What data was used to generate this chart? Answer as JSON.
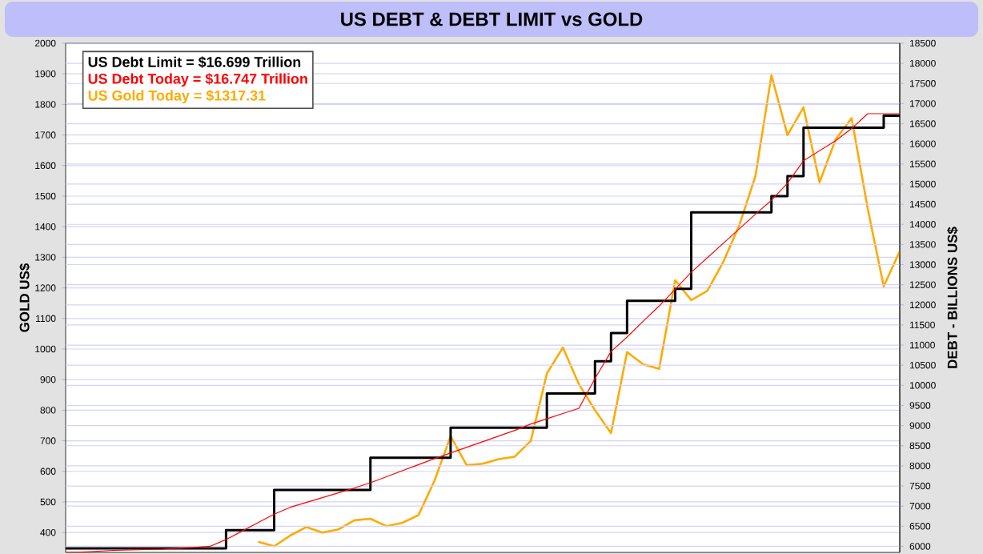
{
  "chart_data": {
    "type": "line",
    "title": "US DEBT & DEBT LIMIT vs GOLD",
    "ylabel": "GOLD US$",
    "y2label": "DEBT - BILLIONS US$",
    "categories": [
      null,
      null,
      null,
      null,
      null,
      null,
      null,
      null,
      null,
      null,
      null,
      null,
      null,
      null,
      null,
      null,
      null,
      null,
      null,
      null,
      null,
      null,
      null,
      null,
      null,
      null,
      null,
      null,
      null,
      null,
      null,
      null,
      null,
      null,
      null,
      null,
      null,
      null,
      null,
      null,
      null,
      null,
      null,
      null,
      null,
      null,
      null,
      null,
      null,
      null,
      null,
      null,
      null
    ],
    "ylim": [
      335,
      2000
    ],
    "yticks": [
      400,
      500,
      600,
      700,
      800,
      900,
      1000,
      1100,
      1200,
      1300,
      1400,
      1500,
      1600,
      1700,
      1800,
      1900,
      2000
    ],
    "y2lim": [
      5850,
      18500
    ],
    "y2ticks": [
      6000,
      6500,
      7000,
      7500,
      8000,
      8500,
      9000,
      9500,
      10000,
      10500,
      11000,
      11500,
      12000,
      12500,
      13000,
      13500,
      14000,
      14500,
      15000,
      15500,
      16000,
      16500,
      17000,
      17500,
      18000,
      18500
    ],
    "tick_labels": "y",
    "grid": "y",
    "legend": "top left",
    "line_style": "solid",
    "marker": "none",
    "series": [
      {
        "name": "US Debt Limit = $16.699 Trillion",
        "type": "step",
        "axis": "y2",
        "color": "#000000",
        "values": [
          5950,
          5950,
          5950,
          5950,
          5950,
          5950,
          5950,
          5950,
          5950,
          5950,
          6400,
          6400,
          6400,
          7400,
          7400,
          7400,
          7400,
          7400,
          7400,
          8200,
          8200,
          8200,
          8200,
          8200,
          8950,
          8950,
          8950,
          8950,
          8950,
          8950,
          9800,
          9800,
          9800,
          10600,
          11300,
          12100,
          12100,
          12100,
          12400,
          14300,
          14300,
          14300,
          14300,
          14300,
          14700,
          15200,
          16400,
          16400,
          16400,
          16400,
          16400,
          16700,
          16700
        ]
      },
      {
        "name": "US Debt Today = $16.747 Trillion",
        "axis": "y2",
        "color": "#ff0000",
        "values": [
          5850,
          5860,
          5880,
          5900,
          5910,
          5920,
          5930,
          5950,
          5970,
          6000,
          6170,
          6380,
          6590,
          6800,
          6970,
          7090,
          7210,
          7330,
          7450,
          7580,
          7730,
          7880,
          8030,
          8180,
          8320,
          8460,
          8600,
          8740,
          8880,
          9040,
          9170,
          9300,
          9430,
          10170,
          10840,
          11200,
          11590,
          11970,
          12390,
          12810,
          13170,
          13530,
          13890,
          14250,
          14600,
          15020,
          15580,
          15830,
          16080,
          16380,
          16750,
          16750,
          16750
        ]
      },
      {
        "name": "US Gold Today = $1317.31",
        "axis": "y",
        "color": "#ffaa00",
        "values": [
          null,
          null,
          null,
          null,
          null,
          null,
          null,
          null,
          null,
          null,
          null,
          null,
          370,
          355,
          390,
          418,
          400,
          410,
          440,
          445,
          421,
          432,
          457,
          570,
          715,
          620,
          625,
          640,
          648,
          700,
          920,
          1005,
          885,
          800,
          725,
          990,
          950,
          935,
          1225,
          1160,
          1190,
          1285,
          1405,
          1565,
          1895,
          1700,
          1790,
          1545,
          1685,
          1755,
          1460,
          1205,
          1320
        ]
      }
    ]
  }
}
